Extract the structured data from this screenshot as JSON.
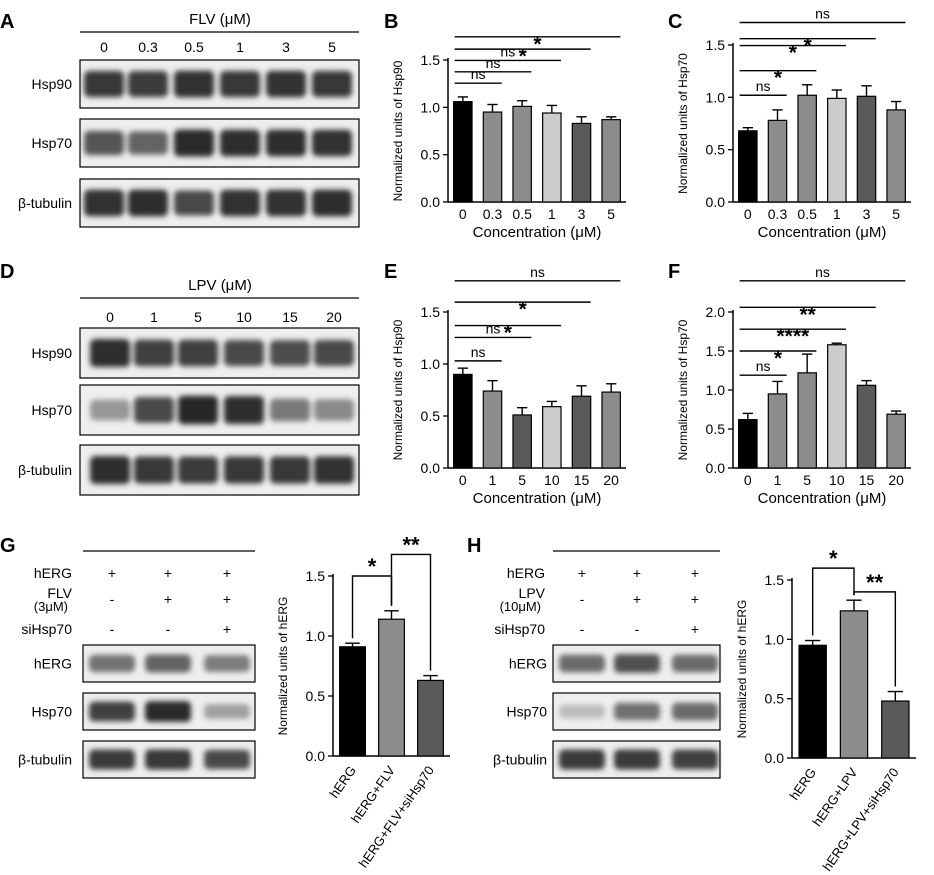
{
  "panel_letters": [
    "A",
    "B",
    "C",
    "D",
    "E",
    "F",
    "G",
    "H"
  ],
  "blots": {
    "A": {
      "treatment": "FLV (μM)",
      "lanes": [
        "0",
        "0.3",
        "0.5",
        "1",
        "3",
        "5"
      ],
      "rows": [
        "Hsp90",
        "Hsp70",
        "β-tubulin"
      ],
      "intensity": [
        [
          0.82,
          0.8,
          0.85,
          0.82,
          0.84,
          0.82
        ],
        [
          0.68,
          0.62,
          0.88,
          0.86,
          0.86,
          0.84
        ],
        [
          0.84,
          0.86,
          0.74,
          0.84,
          0.84,
          0.86
        ]
      ]
    },
    "D": {
      "treatment": "LPV (μM)",
      "lanes": [
        "0",
        "1",
        "5",
        "10",
        "15",
        "20"
      ],
      "rows": [
        "Hsp90",
        "Hsp70",
        "β-tubulin"
      ],
      "intensity": [
        [
          0.86,
          0.78,
          0.78,
          0.74,
          0.72,
          0.74
        ],
        [
          0.38,
          0.74,
          0.9,
          0.86,
          0.52,
          0.44
        ],
        [
          0.86,
          0.82,
          0.8,
          0.82,
          0.82,
          0.84
        ]
      ]
    },
    "G": {
      "conditions": [
        {
          "name": "hERG",
          "marks": [
            "+",
            "+",
            "+"
          ]
        },
        {
          "name": "FLV",
          "sub": "(3μM)",
          "marks": [
            "-",
            "+",
            "+"
          ]
        },
        {
          "name": "siHsp70",
          "marks": [
            "-",
            "-",
            "+"
          ]
        }
      ],
      "rows": [
        "hERG",
        "Hsp70",
        "β-tubulin"
      ],
      "intensity": [
        [
          0.55,
          0.62,
          0.5
        ],
        [
          0.78,
          0.88,
          0.34
        ],
        [
          0.8,
          0.82,
          0.74
        ]
      ]
    },
    "H": {
      "conditions": [
        {
          "name": "hERG",
          "marks": [
            "+",
            "+",
            "+"
          ]
        },
        {
          "name": "LPV",
          "sub": "(10μM)",
          "marks": [
            "-",
            "+",
            "+"
          ]
        },
        {
          "name": "siHsp70",
          "marks": [
            "-",
            "-",
            "+"
          ]
        }
      ],
      "rows": [
        "hERG",
        "Hsp70",
        "β-tubulin"
      ],
      "intensity": [
        [
          0.58,
          0.7,
          0.58
        ],
        [
          0.22,
          0.56,
          0.58
        ],
        [
          0.8,
          0.8,
          0.78
        ]
      ]
    }
  },
  "colors": {
    "black": "#000000",
    "mid_gray": "#8c8c8c",
    "light_gray": "#cccccc",
    "dark_gray": "#5a5a5a"
  },
  "chart_data": [
    {
      "panel": "B",
      "type": "bar",
      "categories": [
        "0",
        "0.3",
        "0.5",
        "1",
        "3",
        "5"
      ],
      "values": [
        1.06,
        0.95,
        1.01,
        0.94,
        0.83,
        0.87
      ],
      "errors": [
        0.05,
        0.08,
        0.06,
        0.08,
        0.07,
        0.03
      ],
      "ylabel": "Normalized units of Hsp90",
      "xlabel": "Concentration (μM)",
      "ylim": [
        0,
        1.5
      ],
      "yticks": [
        "0.0",
        "0.5",
        "1.0",
        "1.5"
      ],
      "ymax": 1.5,
      "bar_colors": [
        "#000000",
        "#8c8c8c",
        "#8c8c8c",
        "#cccccc",
        "#5a5a5a",
        "#8c8c8c"
      ],
      "significance": [
        {
          "to": 2,
          "label": "ns",
          "level": 1.255
        },
        {
          "to": 3,
          "label": "ns",
          "level": 1.375
        },
        {
          "to": 4,
          "label": "ns",
          "level": 1.495
        },
        {
          "to": 5,
          "label": "*",
          "level": 1.615
        },
        {
          "to": 6,
          "label": "*",
          "level": 1.745
        }
      ]
    },
    {
      "panel": "C",
      "type": "bar",
      "categories": [
        "0",
        "0.3",
        "0.5",
        "1",
        "3",
        "5"
      ],
      "values": [
        0.68,
        0.78,
        1.02,
        0.99,
        1.01,
        0.88
      ],
      "errors": [
        0.03,
        0.1,
        0.1,
        0.08,
        0.1,
        0.08
      ],
      "ylabel": "Normalized units of Hsp70",
      "xlabel": "Concentration (μM)",
      "ylim": [
        0,
        1.5
      ],
      "yticks": [
        "0.0",
        "0.5",
        "1.0",
        "1.5"
      ],
      "ymax": 1.5,
      "bar_colors": [
        "#000000",
        "#8c8c8c",
        "#8c8c8c",
        "#cccccc",
        "#5a5a5a",
        "#8c8c8c"
      ],
      "significance": [
        {
          "to": 2,
          "label": "ns",
          "level": 1.02
        },
        {
          "to": 3,
          "label": "*",
          "level": 1.255
        },
        {
          "to": 4,
          "label": "*",
          "level": 1.495
        },
        {
          "to": 5,
          "label": "*",
          "level": 1.56
        },
        {
          "to": 6,
          "label": "ns",
          "level": 1.715
        }
      ]
    },
    {
      "panel": "E",
      "type": "bar",
      "categories": [
        "0",
        "1",
        "5",
        "10",
        "15",
        "20"
      ],
      "values": [
        0.9,
        0.74,
        0.51,
        0.59,
        0.69,
        0.73
      ],
      "errors": [
        0.06,
        0.1,
        0.07,
        0.05,
        0.1,
        0.08
      ],
      "ylabel": "Normalized units of Hsp90",
      "xlabel": "Concentration (μM)",
      "ylim": [
        0,
        1.5
      ],
      "yticks": [
        "0.0",
        "0.5",
        "1.0",
        "1.5"
      ],
      "ymax": 1.5,
      "bar_colors": [
        "#000000",
        "#8c8c8c",
        "#5a5a5a",
        "#cccccc",
        "#5a5a5a",
        "#8c8c8c"
      ],
      "significance": [
        {
          "to": 2,
          "label": "ns",
          "level": 1.03
        },
        {
          "to": 3,
          "label": "ns",
          "level": 1.255
        },
        {
          "to": 4,
          "label": "*",
          "level": 1.37
        },
        {
          "to": 5,
          "label": "*",
          "level": 1.595
        },
        {
          "to": 6,
          "label": "ns",
          "level": 1.8
        }
      ]
    },
    {
      "panel": "F",
      "type": "bar",
      "categories": [
        "0",
        "1",
        "5",
        "10",
        "15",
        "20"
      ],
      "values": [
        0.62,
        0.95,
        1.22,
        1.58,
        1.06,
        0.69
      ],
      "errors": [
        0.08,
        0.16,
        0.24,
        0.02,
        0.06,
        0.04
      ],
      "ylabel": "Normalized units of Hsp70",
      "xlabel": "Concentration (μM)",
      "ylim": [
        0,
        2.0
      ],
      "yticks": [
        "0.0",
        "0.5",
        "1.0",
        "1.5",
        "2.0"
      ],
      "ymax": 2.0,
      "bar_colors": [
        "#000000",
        "#8c8c8c",
        "#8c8c8c",
        "#cccccc",
        "#5a5a5a",
        "#8c8c8c"
      ],
      "significance": [
        {
          "to": 2,
          "label": "ns",
          "level": 1.19
        },
        {
          "to": 3,
          "label": "*",
          "level": 1.5
        },
        {
          "to": 4,
          "label": "****",
          "level": 1.78
        },
        {
          "to": 5,
          "label": "**",
          "level": 2.06
        },
        {
          "to": 6,
          "label": "ns",
          "level": 2.4
        }
      ]
    },
    {
      "panel": "G",
      "type": "bar",
      "categories": [
        "hERG",
        "hERG+FLV",
        "hERG+FLV+siHsp70"
      ],
      "values": [
        0.91,
        1.14,
        0.63
      ],
      "errors": [
        0.03,
        0.07,
        0.04
      ],
      "ylabel": "Normalized units of hERG",
      "ylim": [
        0,
        1.5
      ],
      "yticks": [
        "0.0",
        "0.5",
        "1.0",
        "1.5"
      ],
      "ymax": 1.5,
      "bar_colors": [
        "#000000",
        "#8c8c8c",
        "#5a5a5a"
      ],
      "brackets": [
        {
          "from": 0,
          "to": 1,
          "label": "*",
          "level": 1.5
        },
        {
          "from": 1,
          "to": 2,
          "label": "**",
          "level": 1.68
        }
      ]
    },
    {
      "panel": "H",
      "type": "bar",
      "categories": [
        "hERG",
        "hERG+LPV",
        "hERG+LPV+siHsp70"
      ],
      "values": [
        0.95,
        1.24,
        0.48
      ],
      "errors": [
        0.04,
        0.09,
        0.08
      ],
      "ylabel": "Normalized units of hERG",
      "ylim": [
        0,
        1.5
      ],
      "yticks": [
        "0.0",
        "0.5",
        "1.0",
        "1.5"
      ],
      "ymax": 1.5,
      "bar_colors": [
        "#000000",
        "#8c8c8c",
        "#5a5a5a"
      ],
      "brackets": [
        {
          "from": 0,
          "to": 1,
          "label": "*",
          "level": 1.6
        },
        {
          "from": 1,
          "to": 2,
          "label": "**",
          "level": 1.4
        }
      ]
    }
  ]
}
